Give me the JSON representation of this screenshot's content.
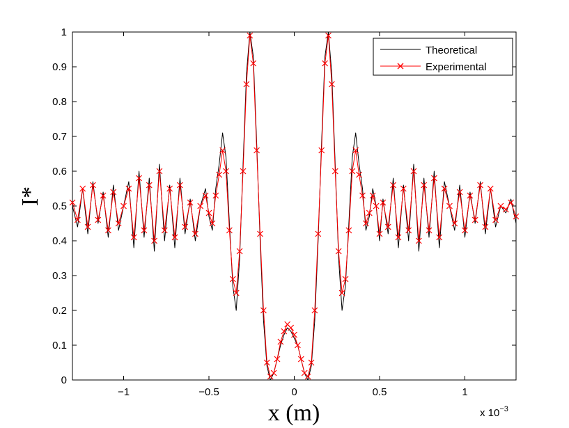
{
  "chart_data": {
    "type": "line",
    "title": "",
    "xlabel": "x (m)",
    "ylabel": "I*",
    "x_scale_label": "x 10",
    "x_scale_exponent": "−3",
    "xlim": [
      -1.3,
      1.3
    ],
    "ylim": [
      0,
      1
    ],
    "grid": false,
    "legend_position": "top-right",
    "x_ticks": [
      {
        "value": -1,
        "label": "−1"
      },
      {
        "value": -0.5,
        "label": "−0.5"
      },
      {
        "value": 0,
        "label": "0"
      },
      {
        "value": 0.5,
        "label": "0.5"
      },
      {
        "value": 1,
        "label": "1"
      }
    ],
    "y_ticks": [
      {
        "value": 0,
        "label": "0"
      },
      {
        "value": 0.1,
        "label": "0.1"
      },
      {
        "value": 0.2,
        "label": "0.2"
      },
      {
        "value": 0.3,
        "label": "0.3"
      },
      {
        "value": 0.4,
        "label": "0.4"
      },
      {
        "value": 0.5,
        "label": "0.5"
      },
      {
        "value": 0.6,
        "label": "0.6"
      },
      {
        "value": 0.7,
        "label": "0.7"
      },
      {
        "value": 0.8,
        "label": "0.8"
      },
      {
        "value": 0.9,
        "label": "0.9"
      },
      {
        "value": 1,
        "label": "1"
      }
    ],
    "series": [
      {
        "name": "Theoretical",
        "color": "#000000",
        "marker": "none",
        "x": [
          -1.3,
          -1.27,
          -1.24,
          -1.21,
          -1.18,
          -1.15,
          -1.12,
          -1.09,
          -1.06,
          -1.03,
          -1.0,
          -0.97,
          -0.94,
          -0.91,
          -0.88,
          -0.85,
          -0.82,
          -0.79,
          -0.76,
          -0.73,
          -0.7,
          -0.67,
          -0.64,
          -0.61,
          -0.58,
          -0.55,
          -0.52,
          -0.5,
          -0.48,
          -0.46,
          -0.44,
          -0.42,
          -0.4,
          -0.38,
          -0.36,
          -0.34,
          -0.32,
          -0.3,
          -0.28,
          -0.26,
          -0.24,
          -0.22,
          -0.2,
          -0.18,
          -0.16,
          -0.14,
          -0.12,
          -0.1,
          -0.08,
          -0.06,
          -0.04,
          -0.02,
          0.0,
          0.02,
          0.04,
          0.06,
          0.08,
          0.1,
          0.12,
          0.14,
          0.16,
          0.18,
          0.2,
          0.22,
          0.24,
          0.26,
          0.28,
          0.3,
          0.32,
          0.34,
          0.36,
          0.38,
          0.4,
          0.42,
          0.44,
          0.46,
          0.48,
          0.5,
          0.52,
          0.55,
          0.58,
          0.61,
          0.64,
          0.67,
          0.7,
          0.73,
          0.76,
          0.79,
          0.82,
          0.85,
          0.88,
          0.91,
          0.94,
          0.97,
          1.0,
          1.03,
          1.06,
          1.09,
          1.12,
          1.15,
          1.18,
          1.21,
          1.24,
          1.27,
          1.3
        ],
        "y": [
          0.5,
          0.44,
          0.55,
          0.42,
          0.57,
          0.45,
          0.54,
          0.41,
          0.56,
          0.43,
          0.5,
          0.57,
          0.38,
          0.6,
          0.41,
          0.58,
          0.37,
          0.62,
          0.4,
          0.56,
          0.38,
          0.58,
          0.42,
          0.52,
          0.4,
          0.5,
          0.55,
          0.47,
          0.43,
          0.55,
          0.62,
          0.71,
          0.64,
          0.45,
          0.27,
          0.2,
          0.35,
          0.62,
          0.88,
          1.0,
          0.93,
          0.68,
          0.4,
          0.17,
          0.04,
          0.0,
          0.02,
          0.06,
          0.1,
          0.13,
          0.15,
          0.14,
          0.12,
          0.1,
          0.06,
          0.02,
          0.0,
          0.04,
          0.17,
          0.4,
          0.68,
          0.93,
          1.0,
          0.88,
          0.62,
          0.35,
          0.2,
          0.27,
          0.45,
          0.64,
          0.71,
          0.62,
          0.55,
          0.43,
          0.47,
          0.55,
          0.5,
          0.4,
          0.52,
          0.42,
          0.58,
          0.38,
          0.56,
          0.4,
          0.62,
          0.37,
          0.58,
          0.41,
          0.6,
          0.38,
          0.57,
          0.5,
          0.43,
          0.56,
          0.41,
          0.54,
          0.45,
          0.57,
          0.42,
          0.55,
          0.44,
          0.5,
          0.48,
          0.52,
          0.45
        ]
      },
      {
        "name": "Experimental",
        "color": "#ff0000",
        "marker": "x",
        "x": [
          -1.3,
          -1.27,
          -1.24,
          -1.21,
          -1.18,
          -1.15,
          -1.12,
          -1.09,
          -1.06,
          -1.03,
          -1.0,
          -0.97,
          -0.94,
          -0.91,
          -0.88,
          -0.85,
          -0.82,
          -0.79,
          -0.76,
          -0.73,
          -0.7,
          -0.67,
          -0.64,
          -0.61,
          -0.58,
          -0.55,
          -0.52,
          -0.5,
          -0.48,
          -0.46,
          -0.44,
          -0.42,
          -0.4,
          -0.38,
          -0.36,
          -0.34,
          -0.32,
          -0.3,
          -0.28,
          -0.26,
          -0.24,
          -0.22,
          -0.2,
          -0.18,
          -0.16,
          -0.14,
          -0.12,
          -0.1,
          -0.08,
          -0.06,
          -0.04,
          -0.02,
          0.0,
          0.02,
          0.04,
          0.06,
          0.08,
          0.1,
          0.12,
          0.14,
          0.16,
          0.18,
          0.2,
          0.22,
          0.24,
          0.26,
          0.28,
          0.3,
          0.32,
          0.34,
          0.36,
          0.38,
          0.4,
          0.42,
          0.44,
          0.46,
          0.48,
          0.5,
          0.52,
          0.55,
          0.58,
          0.61,
          0.64,
          0.67,
          0.7,
          0.73,
          0.76,
          0.79,
          0.82,
          0.85,
          0.88,
          0.91,
          0.94,
          0.97,
          1.0,
          1.03,
          1.06,
          1.09,
          1.12,
          1.15,
          1.18,
          1.21,
          1.24,
          1.27,
          1.3
        ],
        "y": [
          0.51,
          0.46,
          0.55,
          0.44,
          0.56,
          0.46,
          0.53,
          0.43,
          0.54,
          0.45,
          0.5,
          0.55,
          0.41,
          0.58,
          0.43,
          0.56,
          0.4,
          0.6,
          0.43,
          0.55,
          0.41,
          0.56,
          0.44,
          0.51,
          0.42,
          0.5,
          0.53,
          0.48,
          0.45,
          0.53,
          0.59,
          0.66,
          0.6,
          0.43,
          0.29,
          0.25,
          0.37,
          0.6,
          0.85,
          0.99,
          0.91,
          0.66,
          0.42,
          0.2,
          0.05,
          0.01,
          0.02,
          0.06,
          0.11,
          0.14,
          0.16,
          0.15,
          0.13,
          0.1,
          0.06,
          0.02,
          0.01,
          0.05,
          0.2,
          0.42,
          0.66,
          0.91,
          0.99,
          0.85,
          0.6,
          0.37,
          0.25,
          0.29,
          0.43,
          0.6,
          0.66,
          0.59,
          0.53,
          0.45,
          0.48,
          0.53,
          0.5,
          0.42,
          0.51,
          0.44,
          0.56,
          0.41,
          0.55,
          0.43,
          0.6,
          0.4,
          0.56,
          0.43,
          0.58,
          0.41,
          0.55,
          0.5,
          0.45,
          0.54,
          0.43,
          0.53,
          0.46,
          0.56,
          0.44,
          0.55,
          0.46,
          0.5,
          0.49,
          0.51,
          0.47
        ]
      }
    ]
  }
}
